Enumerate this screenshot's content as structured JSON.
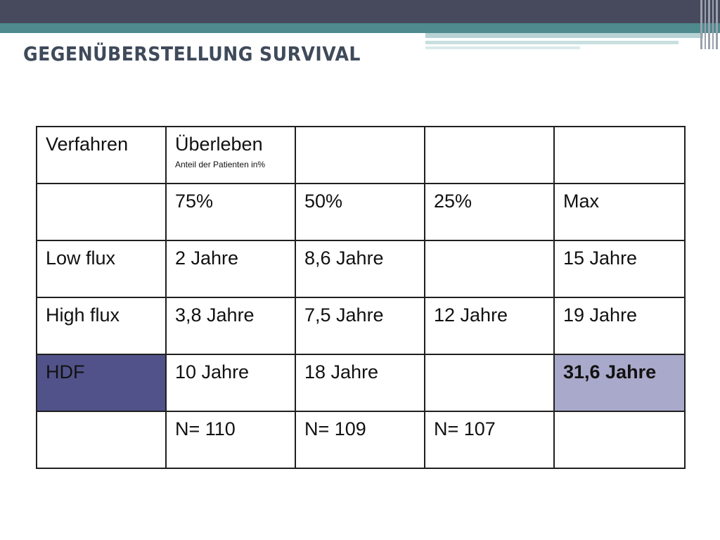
{
  "slide": {
    "title": "GEGENÜBERSTELLUNG SURVIVAL"
  },
  "table": {
    "header": {
      "col1": "Verfahren",
      "col2_main": "Überleben",
      "col2_sub": "Anteil der Patienten in%"
    },
    "percent_row": [
      "75%",
      "50%",
      "25%",
      "Max"
    ],
    "rows": [
      {
        "label": "Low flux",
        "cells": [
          "2 Jahre",
          "8,6 Jahre",
          "",
          "15 Jahre"
        ]
      },
      {
        "label": "High flux",
        "cells": [
          "3,8 Jahre",
          "7,5 Jahre",
          "12 Jahre",
          "19 Jahre"
        ]
      },
      {
        "label": "HDF",
        "cells": [
          "10 Jahre",
          "18 Jahre",
          "",
          "31,6 Jahre"
        ]
      }
    ],
    "n_row": [
      "N= 110",
      "N= 109",
      "N= 107"
    ]
  },
  "colors": {
    "header_dark": "#464a5c",
    "header_teal": "#4e8a8e",
    "hdf_label_bg": "#52528a",
    "hdf_max_bg": "#a9a9cb"
  }
}
